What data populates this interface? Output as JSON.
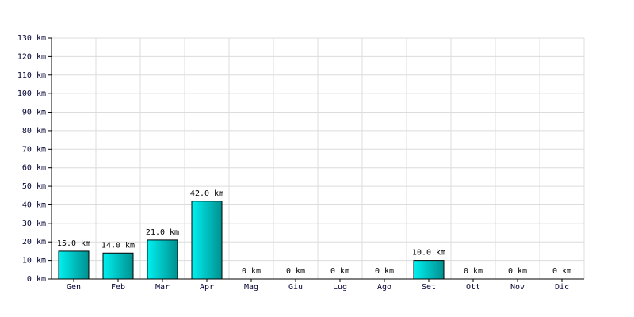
{
  "chart_data": {
    "type": "bar",
    "categories": [
      "Gen",
      "Feb",
      "Mar",
      "Apr",
      "Mag",
      "Giu",
      "Lug",
      "Ago",
      "Set",
      "Ott",
      "Nov",
      "Dic"
    ],
    "values": [
      15,
      14,
      21,
      42,
      0,
      0,
      0,
      0,
      10,
      0,
      0,
      0
    ],
    "value_labels": [
      "15.0 km",
      "14.0 km",
      "21.0 km",
      "42.0 km",
      "0 km",
      "0 km",
      "0 km",
      "0 km",
      "10.0 km",
      "0 km",
      "0 km",
      "0 km"
    ],
    "color": "#00c8c8",
    "ylim": [
      0,
      130
    ],
    "yticks": [
      {
        "value": 0,
        "label": "0 km"
      },
      {
        "value": 10,
        "label": "10 km"
      },
      {
        "value": 20,
        "label": "20 km"
      },
      {
        "value": 30,
        "label": "30 km"
      },
      {
        "value": 40,
        "label": "40 km"
      },
      {
        "value": 50,
        "label": "50 km"
      },
      {
        "value": 60,
        "label": "60 km"
      },
      {
        "value": 70,
        "label": "70 km"
      },
      {
        "value": 80,
        "label": "80 km"
      },
      {
        "value": 90,
        "label": "90 km"
      },
      {
        "value": 100,
        "label": "100 km"
      },
      {
        "value": 110,
        "label": "110 km"
      },
      {
        "value": 120,
        "label": "120 km"
      },
      {
        "value": 130,
        "label": "130 km"
      }
    ],
    "grid": true
  }
}
